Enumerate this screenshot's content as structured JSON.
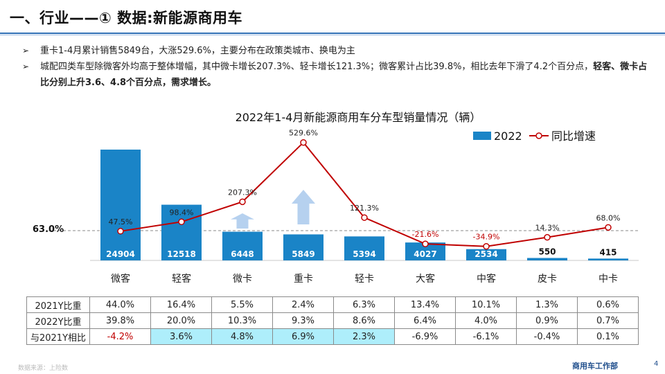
{
  "page": {
    "title": "一、行业——① 数据:新能源商用车",
    "bullets": [
      {
        "mark": "➢",
        "text": "重卡1-4月累计销售5849台，大涨529.6%，主要分布在政策类城市、换电为主",
        "bold": ""
      },
      {
        "mark": "➢",
        "text": "城配四类车型除微客外均高于整体增幅，其中微卡增长207.3%、轻卡增长121.3%；微客累计占比39.8%，相比去年下滑了4.2个百分点，",
        "bold": "轻客、微卡占比分别上升3.6、4.8个百分点，需求增长。"
      }
    ],
    "footer_left": "数据来源：上险数",
    "footer_right": "商用车工作部",
    "page_number": "4"
  },
  "chart_data": {
    "type": "bar",
    "title": "2022年1-4月新能源商用车分车型销量情况（辆）",
    "categories": [
      "微客",
      "轻客",
      "微卡",
      "重卡",
      "轻卡",
      "大客",
      "中客",
      "皮卡",
      "中卡"
    ],
    "series": [
      {
        "name": "2022",
        "type": "bar",
        "values": [
          24904,
          12518,
          6448,
          5849,
          5394,
          4027,
          2534,
          550,
          415
        ],
        "color": "#1a84c7"
      },
      {
        "name": "同比增速",
        "type": "line",
        "values": [
          47.5,
          98.4,
          207.3,
          529.6,
          121.3,
          -21.6,
          -34.9,
          14.3,
          68.0
        ],
        "color": "#c00000"
      }
    ],
    "reference_line": {
      "label": "63.0%",
      "value": 63.0
    },
    "ylim_bar": [
      0,
      28000
    ],
    "ylim_line": [
      -100,
      600
    ],
    "legend_position": "top-right",
    "grid": false
  },
  "table": {
    "rows": [
      {
        "label": "2021Y比重",
        "values": [
          "44.0%",
          "16.4%",
          "5.5%",
          "2.4%",
          "6.3%",
          "13.4%",
          "10.1%",
          "1.3%",
          "0.6%"
        ]
      },
      {
        "label": "2022Y比重",
        "values": [
          "39.8%",
          "20.0%",
          "10.3%",
          "9.3%",
          "8.6%",
          "6.4%",
          "4.0%",
          "0.9%",
          "0.7%"
        ]
      },
      {
        "label": "与2021Y相比",
        "values": [
          "-4.2%",
          "3.6%",
          "4.8%",
          "6.9%",
          "2.3%",
          "-6.9%",
          "-6.1%",
          "-0.4%",
          "0.1%"
        ]
      }
    ]
  }
}
